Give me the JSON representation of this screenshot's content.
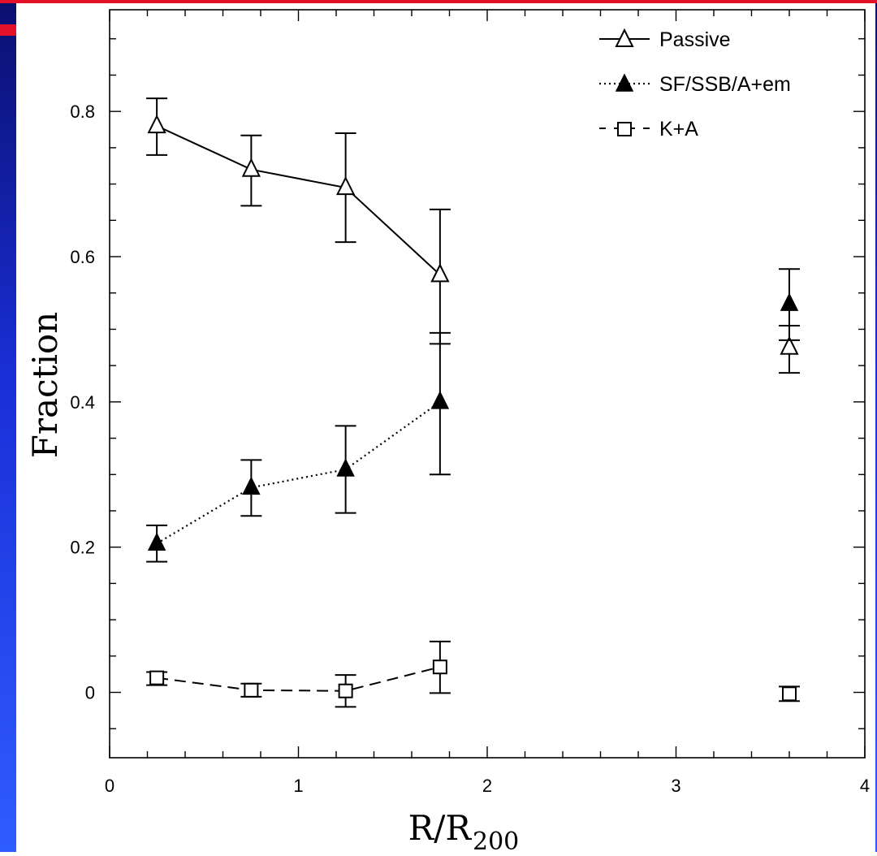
{
  "chart_data": {
    "type": "scatter",
    "xlabel": "R/R",
    "xlabel_subscript": "200",
    "ylabel": "Fraction",
    "xlim": [
      0,
      4
    ],
    "ylim": [
      -0.09,
      0.94
    ],
    "x_ticks": [
      "0",
      "1",
      "2",
      "3",
      "4"
    ],
    "y_ticks": [
      "0",
      "0.2",
      "0.4",
      "0.6",
      "0.8"
    ],
    "x_tick_values": [
      0,
      1,
      2,
      3,
      4
    ],
    "y_tick_values": [
      0,
      0.2,
      0.4,
      0.6,
      0.8
    ],
    "legend_position": "top-right",
    "series": [
      {
        "name": "Passive",
        "marker": "open-triangle",
        "line": "solid",
        "points": [
          {
            "x": 0.25,
            "y": 0.78,
            "err_lo": 0.74,
            "err_hi": 0.818
          },
          {
            "x": 0.75,
            "y": 0.72,
            "err_lo": 0.67,
            "err_hi": 0.767
          },
          {
            "x": 1.25,
            "y": 0.695,
            "err_lo": 0.62,
            "err_hi": 0.77
          },
          {
            "x": 1.75,
            "y": 0.575,
            "err_lo": 0.48,
            "err_hi": 0.665
          }
        ],
        "isolated": [
          {
            "x": 3.6,
            "y": 0.475,
            "err_lo": 0.44,
            "err_hi": 0.505
          }
        ]
      },
      {
        "name": "SF/SSB/A+em",
        "marker": "filled-triangle",
        "line": "dotted",
        "points": [
          {
            "x": 0.25,
            "y": 0.205,
            "err_lo": 0.18,
            "err_hi": 0.23
          },
          {
            "x": 0.75,
            "y": 0.282,
            "err_lo": 0.243,
            "err_hi": 0.32
          },
          {
            "x": 1.25,
            "y": 0.307,
            "err_lo": 0.247,
            "err_hi": 0.367
          },
          {
            "x": 1.75,
            "y": 0.4,
            "err_lo": 0.3,
            "err_hi": 0.495
          }
        ],
        "isolated": [
          {
            "x": 3.6,
            "y": 0.535,
            "err_lo": 0.485,
            "err_hi": 0.583
          }
        ]
      },
      {
        "name": "K+A",
        "marker": "open-square",
        "line": "dashed",
        "points": [
          {
            "x": 0.25,
            "y": 0.02,
            "err_lo": 0.01,
            "err_hi": 0.028
          },
          {
            "x": 0.75,
            "y": 0.003,
            "err_lo": -0.006,
            "err_hi": 0.012
          },
          {
            "x": 1.25,
            "y": 0.002,
            "err_lo": -0.02,
            "err_hi": 0.024
          },
          {
            "x": 1.75,
            "y": 0.035,
            "err_lo": -0.001,
            "err_hi": 0.07
          }
        ],
        "isolated": [
          {
            "x": 3.6,
            "y": -0.002,
            "err_lo": -0.012,
            "err_hi": 0.008
          }
        ]
      }
    ]
  },
  "colors": {
    "frame_blue_dark": "#0a0f6e",
    "frame_blue_light": "#2f5cff",
    "accent_red": "#e3102a",
    "ink": "#000000"
  }
}
